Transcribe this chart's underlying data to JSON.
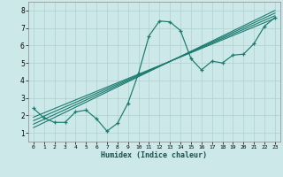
{
  "xlabel": "Humidex (Indice chaleur)",
  "bg_color": "#cce8e8",
  "line_color": "#1a7a6e",
  "grid_color": "#b0d0d0",
  "xlim": [
    -0.5,
    23.5
  ],
  "ylim": [
    0.5,
    8.5
  ],
  "xticks": [
    0,
    1,
    2,
    3,
    4,
    5,
    6,
    7,
    8,
    9,
    10,
    11,
    12,
    13,
    14,
    15,
    16,
    17,
    18,
    19,
    20,
    21,
    22,
    23
  ],
  "yticks": [
    1,
    2,
    3,
    4,
    5,
    6,
    7,
    8
  ],
  "data_x": [
    0,
    1,
    2,
    3,
    4,
    5,
    6,
    7,
    8,
    9,
    10,
    11,
    12,
    13,
    14,
    15,
    16,
    17,
    18,
    19,
    20,
    21,
    22,
    23
  ],
  "data_y": [
    2.4,
    1.85,
    1.6,
    1.6,
    2.2,
    2.3,
    1.8,
    1.1,
    1.55,
    2.7,
    4.4,
    6.55,
    7.4,
    7.35,
    6.85,
    5.25,
    4.6,
    5.1,
    5.0,
    5.45,
    5.5,
    6.1,
    7.1,
    7.6
  ],
  "reg_lines": [
    {
      "x0": 0,
      "y0": 1.3,
      "x1": 23,
      "y1": 8.0
    },
    {
      "x0": 0,
      "y0": 1.5,
      "x1": 23,
      "y1": 7.85
    },
    {
      "x0": 0,
      "y0": 1.7,
      "x1": 23,
      "y1": 7.7
    },
    {
      "x0": 0,
      "y0": 1.9,
      "x1": 23,
      "y1": 7.55
    }
  ]
}
